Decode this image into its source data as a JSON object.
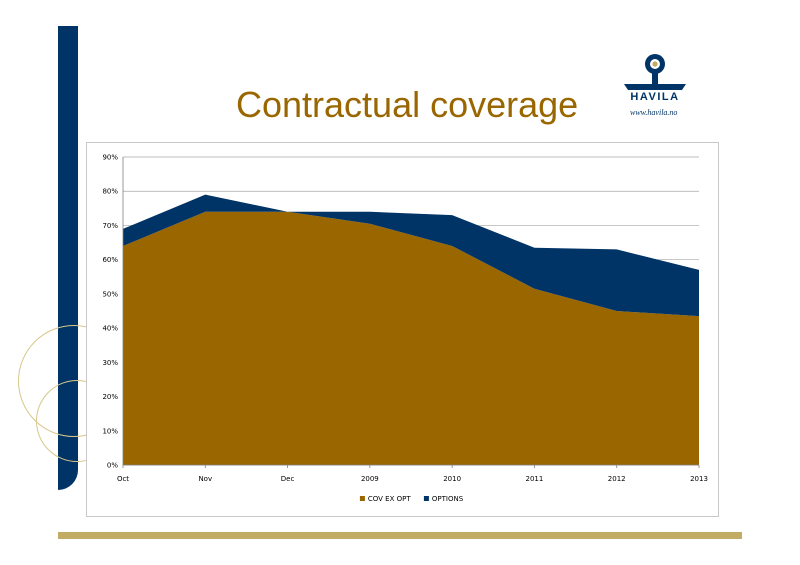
{
  "slide": {
    "title": "Contractual coverage",
    "logo_text": "HAVILA",
    "logo_url": "www.havila.no",
    "colors": {
      "navy": "#003366",
      "gold_bar": "#c2ab63",
      "title": "#996600"
    }
  },
  "chart_data": {
    "type": "area",
    "stacked": true,
    "categories": [
      "Oct",
      "Nov",
      "Dec",
      "2009",
      "2010",
      "2011",
      "2012",
      "2013"
    ],
    "series": [
      {
        "name": "COV EX OPT",
        "color": "#996600",
        "values": [
          64,
          74,
          74,
          70.5,
          64,
          51.5,
          45,
          43.5
        ]
      },
      {
        "name": "OPTIONS",
        "color": "#003366",
        "values": [
          5,
          5,
          0,
          3.5,
          9,
          12,
          18,
          13.5
        ]
      }
    ],
    "ylim": [
      0,
      90
    ],
    "yticks": [
      "0%",
      "10%",
      "20%",
      "30%",
      "40%",
      "50%",
      "60%",
      "70%",
      "80%",
      "90%"
    ],
    "ytick_values": [
      0,
      10,
      20,
      30,
      40,
      50,
      60,
      70,
      80,
      90
    ],
    "grid": true,
    "legend": "bottom"
  }
}
